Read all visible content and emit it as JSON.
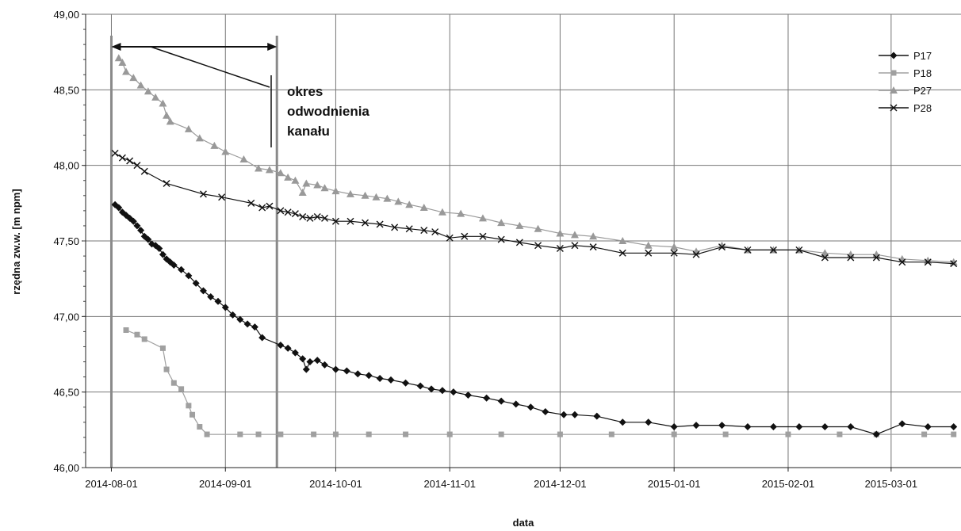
{
  "chart_data": {
    "type": "line",
    "title": "",
    "xlabel": "data",
    "ylabel": "rzędna zw.w. [m npm]",
    "xlim": [
      "2014-07-25",
      "2015-03-20"
    ],
    "ylim": [
      46.0,
      49.0
    ],
    "yticks": [
      46.0,
      46.5,
      47.0,
      47.5,
      48.0,
      48.5,
      49.0
    ],
    "ytick_labels": [
      "46,00",
      "46,50",
      "47,00",
      "47,50",
      "48,00",
      "48,50",
      "49,00"
    ],
    "xticks": [
      "2014-08-01",
      "2014-09-01",
      "2014-10-01",
      "2014-11-01",
      "2014-12-01",
      "2015-01-01",
      "2015-02-01",
      "2015-03-01"
    ],
    "grid": true,
    "legend_position": "top-right",
    "annotation": {
      "lines": [
        "okres",
        "odwodnienia",
        "kanału"
      ],
      "start": "2014-08-01",
      "end": "2014-09-15"
    },
    "series": [
      {
        "name": "P17",
        "marker": "diamond",
        "color": "#111111",
        "points": [
          [
            "2014-08-02",
            47.74
          ],
          [
            "2014-08-03",
            47.72
          ],
          [
            "2014-08-04",
            47.69
          ],
          [
            "2014-08-05",
            47.67
          ],
          [
            "2014-08-06",
            47.65
          ],
          [
            "2014-08-07",
            47.63
          ],
          [
            "2014-08-08",
            47.6
          ],
          [
            "2014-08-09",
            47.57
          ],
          [
            "2014-08-10",
            47.53
          ],
          [
            "2014-08-11",
            47.51
          ],
          [
            "2014-08-12",
            47.48
          ],
          [
            "2014-08-13",
            47.47
          ],
          [
            "2014-08-14",
            47.45
          ],
          [
            "2014-08-15",
            47.41
          ],
          [
            "2014-08-16",
            47.38
          ],
          [
            "2014-08-17",
            47.36
          ],
          [
            "2014-08-18",
            47.34
          ],
          [
            "2014-08-20",
            47.31
          ],
          [
            "2014-08-22",
            47.27
          ],
          [
            "2014-08-24",
            47.22
          ],
          [
            "2014-08-26",
            47.17
          ],
          [
            "2014-08-28",
            47.13
          ],
          [
            "2014-08-30",
            47.1
          ],
          [
            "2014-09-01",
            47.06
          ],
          [
            "2014-09-03",
            47.01
          ],
          [
            "2014-09-05",
            46.98
          ],
          [
            "2014-09-07",
            46.95
          ],
          [
            "2014-09-09",
            46.93
          ],
          [
            "2014-09-11",
            46.86
          ],
          [
            "2014-09-16",
            46.81
          ],
          [
            "2014-09-18",
            46.79
          ],
          [
            "2014-09-20",
            46.76
          ],
          [
            "2014-09-22",
            46.72
          ],
          [
            "2014-09-23",
            46.65
          ],
          [
            "2014-09-24",
            46.7
          ],
          [
            "2014-09-26",
            46.71
          ],
          [
            "2014-09-28",
            46.68
          ],
          [
            "2014-10-01",
            46.65
          ],
          [
            "2014-10-04",
            46.64
          ],
          [
            "2014-10-07",
            46.62
          ],
          [
            "2014-10-10",
            46.61
          ],
          [
            "2014-10-13",
            46.59
          ],
          [
            "2014-10-16",
            46.58
          ],
          [
            "2014-10-20",
            46.56
          ],
          [
            "2014-10-24",
            46.54
          ],
          [
            "2014-10-27",
            46.52
          ],
          [
            "2014-10-30",
            46.51
          ],
          [
            "2014-11-02",
            46.5
          ],
          [
            "2014-11-06",
            46.48
          ],
          [
            "2014-11-11",
            46.46
          ],
          [
            "2014-11-15",
            46.44
          ],
          [
            "2014-11-19",
            46.42
          ],
          [
            "2014-11-23",
            46.4
          ],
          [
            "2014-11-27",
            46.37
          ],
          [
            "2014-12-02",
            46.35
          ],
          [
            "2014-12-05",
            46.35
          ],
          [
            "2014-12-11",
            46.34
          ],
          [
            "2014-12-18",
            46.3
          ],
          [
            "2014-12-25",
            46.3
          ],
          [
            "2015-01-01",
            46.27
          ],
          [
            "2015-01-07",
            46.28
          ],
          [
            "2015-01-14",
            46.28
          ],
          [
            "2015-01-21",
            46.27
          ],
          [
            "2015-01-28",
            46.27
          ],
          [
            "2015-02-04",
            46.27
          ],
          [
            "2015-02-11",
            46.27
          ],
          [
            "2015-02-18",
            46.27
          ],
          [
            "2015-02-25",
            46.22
          ],
          [
            "2015-03-04",
            46.29
          ],
          [
            "2015-03-11",
            46.27
          ],
          [
            "2015-03-18",
            46.27
          ]
        ]
      },
      {
        "name": "P18",
        "marker": "square",
        "color": "#a0a0a0",
        "points": [
          [
            "2014-08-05",
            46.91
          ],
          [
            "2014-08-08",
            46.88
          ],
          [
            "2014-08-10",
            46.85
          ],
          [
            "2014-08-15",
            46.79
          ],
          [
            "2014-08-16",
            46.65
          ],
          [
            "2014-08-18",
            46.56
          ],
          [
            "2014-08-20",
            46.52
          ],
          [
            "2014-08-22",
            46.41
          ],
          [
            "2014-08-23",
            46.35
          ],
          [
            "2014-08-25",
            46.27
          ],
          [
            "2014-08-27",
            46.22
          ],
          [
            "2014-09-05",
            46.22
          ],
          [
            "2014-09-10",
            46.22
          ],
          [
            "2014-09-16",
            46.22
          ],
          [
            "2014-09-25",
            46.22
          ],
          [
            "2014-10-01",
            46.22
          ],
          [
            "2014-10-10",
            46.22
          ],
          [
            "2014-10-20",
            46.22
          ],
          [
            "2014-11-01",
            46.22
          ],
          [
            "2014-11-15",
            46.22
          ],
          [
            "2014-12-01",
            46.22
          ],
          [
            "2014-12-15",
            46.22
          ],
          [
            "2015-01-01",
            46.22
          ],
          [
            "2015-01-15",
            46.22
          ],
          [
            "2015-02-01",
            46.22
          ],
          [
            "2015-02-15",
            46.22
          ],
          [
            "2015-02-25",
            46.22
          ],
          [
            "2015-03-10",
            46.22
          ],
          [
            "2015-03-18",
            46.22
          ]
        ]
      },
      {
        "name": "P27",
        "marker": "triangle",
        "color": "#999999",
        "points": [
          [
            "2014-08-03",
            48.71
          ],
          [
            "2014-08-04",
            48.68
          ],
          [
            "2014-08-05",
            48.62
          ],
          [
            "2014-08-07",
            48.58
          ],
          [
            "2014-08-09",
            48.53
          ],
          [
            "2014-08-11",
            48.49
          ],
          [
            "2014-08-13",
            48.45
          ],
          [
            "2014-08-15",
            48.41
          ],
          [
            "2014-08-16",
            48.33
          ],
          [
            "2014-08-17",
            48.29
          ],
          [
            "2014-08-22",
            48.24
          ],
          [
            "2014-08-25",
            48.18
          ],
          [
            "2014-08-29",
            48.13
          ],
          [
            "2014-09-01",
            48.09
          ],
          [
            "2014-09-06",
            48.04
          ],
          [
            "2014-09-10",
            47.98
          ],
          [
            "2014-09-13",
            47.97
          ],
          [
            "2014-09-16",
            47.95
          ],
          [
            "2014-09-18",
            47.92
          ],
          [
            "2014-09-20",
            47.9
          ],
          [
            "2014-09-22",
            47.82
          ],
          [
            "2014-09-23",
            47.88
          ],
          [
            "2014-09-26",
            47.87
          ],
          [
            "2014-09-28",
            47.85
          ],
          [
            "2014-10-01",
            47.83
          ],
          [
            "2014-10-05",
            47.81
          ],
          [
            "2014-10-09",
            47.8
          ],
          [
            "2014-10-12",
            47.79
          ],
          [
            "2014-10-15",
            47.78
          ],
          [
            "2014-10-18",
            47.76
          ],
          [
            "2014-10-21",
            47.74
          ],
          [
            "2014-10-25",
            47.72
          ],
          [
            "2014-10-30",
            47.69
          ],
          [
            "2014-11-04",
            47.68
          ],
          [
            "2014-11-10",
            47.65
          ],
          [
            "2014-11-15",
            47.62
          ],
          [
            "2014-11-20",
            47.6
          ],
          [
            "2014-11-25",
            47.58
          ],
          [
            "2014-12-01",
            47.55
          ],
          [
            "2014-12-05",
            47.54
          ],
          [
            "2014-12-10",
            47.53
          ],
          [
            "2014-12-18",
            47.5
          ],
          [
            "2014-12-25",
            47.47
          ],
          [
            "2015-01-01",
            47.46
          ],
          [
            "2015-01-07",
            47.43
          ],
          [
            "2015-01-14",
            47.47
          ],
          [
            "2015-01-21",
            47.44
          ],
          [
            "2015-01-28",
            47.44
          ],
          [
            "2015-02-04",
            47.44
          ],
          [
            "2015-02-11",
            47.42
          ],
          [
            "2015-02-18",
            47.41
          ],
          [
            "2015-02-25",
            47.41
          ],
          [
            "2015-03-04",
            47.38
          ],
          [
            "2015-03-11",
            47.37
          ],
          [
            "2015-03-18",
            47.36
          ]
        ]
      },
      {
        "name": "P28",
        "marker": "x",
        "color": "#111111",
        "points": [
          [
            "2014-08-02",
            48.08
          ],
          [
            "2014-08-04",
            48.05
          ],
          [
            "2014-08-06",
            48.03
          ],
          [
            "2014-08-08",
            48.0
          ],
          [
            "2014-08-10",
            47.96
          ],
          [
            "2014-08-16",
            47.88
          ],
          [
            "2014-08-26",
            47.81
          ],
          [
            "2014-08-31",
            47.79
          ],
          [
            "2014-09-08",
            47.75
          ],
          [
            "2014-09-11",
            47.72
          ],
          [
            "2014-09-13",
            47.73
          ],
          [
            "2014-09-16",
            47.7
          ],
          [
            "2014-09-18",
            47.69
          ],
          [
            "2014-09-20",
            47.68
          ],
          [
            "2014-09-22",
            47.66
          ],
          [
            "2014-09-24",
            47.65
          ],
          [
            "2014-09-26",
            47.66
          ],
          [
            "2014-09-28",
            47.65
          ],
          [
            "2014-10-01",
            47.63
          ],
          [
            "2014-10-05",
            47.63
          ],
          [
            "2014-10-09",
            47.62
          ],
          [
            "2014-10-13",
            47.61
          ],
          [
            "2014-10-17",
            47.59
          ],
          [
            "2014-10-21",
            47.58
          ],
          [
            "2014-10-25",
            47.57
          ],
          [
            "2014-10-28",
            47.56
          ],
          [
            "2014-11-01",
            47.52
          ],
          [
            "2014-11-05",
            47.53
          ],
          [
            "2014-11-10",
            47.53
          ],
          [
            "2014-11-15",
            47.51
          ],
          [
            "2014-11-20",
            47.49
          ],
          [
            "2014-11-25",
            47.47
          ],
          [
            "2014-12-01",
            47.45
          ],
          [
            "2014-12-05",
            47.47
          ],
          [
            "2014-12-10",
            47.46
          ],
          [
            "2014-12-18",
            47.42
          ],
          [
            "2014-12-25",
            47.42
          ],
          [
            "2015-01-01",
            47.42
          ],
          [
            "2015-01-07",
            47.41
          ],
          [
            "2015-01-14",
            47.46
          ],
          [
            "2015-01-21",
            47.44
          ],
          [
            "2015-01-28",
            47.44
          ],
          [
            "2015-02-04",
            47.44
          ],
          [
            "2015-02-11",
            47.39
          ],
          [
            "2015-02-18",
            47.39
          ],
          [
            "2015-02-25",
            47.39
          ],
          [
            "2015-03-04",
            47.36
          ],
          [
            "2015-03-11",
            47.36
          ],
          [
            "2015-03-18",
            47.35
          ]
        ]
      }
    ]
  }
}
